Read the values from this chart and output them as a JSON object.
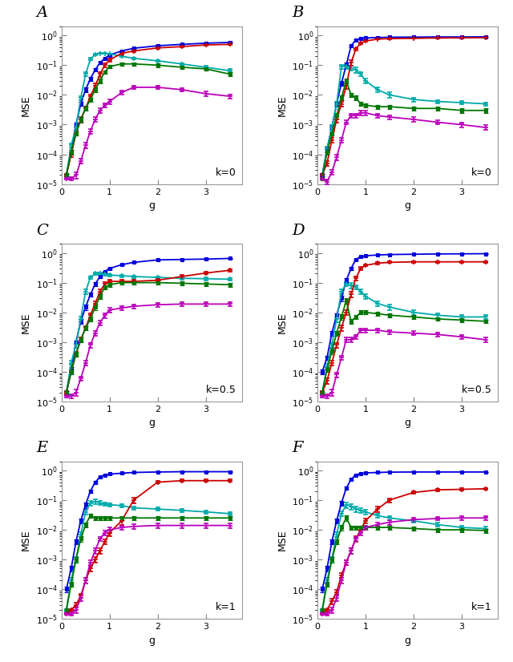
{
  "g_values": [
    0.1,
    0.2,
    0.3,
    0.4,
    0.5,
    0.6,
    0.7,
    0.8,
    0.9,
    1.0,
    1.25,
    1.5,
    2.0,
    2.5,
    3.0,
    3.5
  ],
  "panel_labels": [
    "A",
    "B",
    "C",
    "D",
    "E",
    "F"
  ],
  "k_labels": [
    "k=0",
    "k=0",
    "k=0.5",
    "k=0.5",
    "k=1",
    "k=1"
  ],
  "colors": {
    "blue": "#0000DD",
    "cyan": "#00AAAA",
    "red": "#CC0000",
    "green": "#007700",
    "magenta": "#BB00BB"
  },
  "series_keys": [
    "blue",
    "cyan",
    "red",
    "green",
    "magenta"
  ],
  "ylim": [
    1e-05,
    2.0
  ],
  "xlim": [
    0,
    3.75
  ],
  "panel_data": {
    "A": {
      "blue": [
        2e-05,
        0.00012,
        0.001,
        0.005,
        0.015,
        0.035,
        0.07,
        0.12,
        0.17,
        0.22,
        0.3,
        0.37,
        0.45,
        0.5,
        0.55,
        0.58
      ],
      "cyan": [
        2e-05,
        0.0002,
        0.0008,
        0.008,
        0.05,
        0.16,
        0.23,
        0.25,
        0.25,
        0.24,
        0.2,
        0.17,
        0.14,
        0.11,
        0.085,
        0.065
      ],
      "red": [
        2e-05,
        0.0001,
        0.0005,
        0.0015,
        0.0035,
        0.009,
        0.02,
        0.05,
        0.1,
        0.15,
        0.25,
        0.3,
        0.38,
        0.42,
        0.48,
        0.5
      ],
      "green": [
        2e-05,
        0.00012,
        0.0005,
        0.0015,
        0.0035,
        0.007,
        0.015,
        0.03,
        0.06,
        0.09,
        0.11,
        0.11,
        0.1,
        0.085,
        0.075,
        0.05
      ],
      "magenta": [
        1.5e-05,
        1.5e-05,
        2e-05,
        6e-05,
        0.0002,
        0.0006,
        0.0015,
        0.003,
        0.0045,
        0.006,
        0.012,
        0.018,
        0.018,
        0.015,
        0.011,
        0.009
      ],
      "blue_err": [
        2e-06,
        2e-05,
        0.00015,
        0.0008,
        0.0025,
        0.005,
        0.008,
        0.012,
        0.012,
        0.015,
        0.015,
        0.02,
        0.02,
        0.02,
        0.02,
        0.02
      ],
      "cyan_err": [
        2e-06,
        3e-05,
        0.00015,
        0.0012,
        0.008,
        0.015,
        0.015,
        0.012,
        0.012,
        0.01,
        0.01,
        0.01,
        0.01,
        0.008,
        0.008,
        0.008
      ],
      "red_err": [
        2e-06,
        2e-05,
        8e-05,
        0.0003,
        0.0005,
        0.0015,
        0.004,
        0.01,
        0.015,
        0.02,
        0.02,
        0.02,
        0.02,
        0.02,
        0.02,
        0.02
      ],
      "green_err": [
        2e-06,
        2e-05,
        8e-05,
        0.0003,
        0.0005,
        0.001,
        0.0025,
        0.005,
        0.008,
        0.012,
        0.015,
        0.015,
        0.015,
        0.012,
        0.01,
        0.008
      ],
      "magenta_err": [
        1e-06,
        2e-06,
        5e-06,
        1e-05,
        4e-05,
        0.0001,
        0.00025,
        0.0005,
        0.0008,
        0.0012,
        0.002,
        0.0025,
        0.0025,
        0.002,
        0.002,
        0.0015
      ]
    },
    "B": {
      "blue": [
        2e-05,
        0.00015,
        0.0008,
        0.005,
        0.025,
        0.1,
        0.45,
        0.7,
        0.8,
        0.82,
        0.85,
        0.87,
        0.88,
        0.89,
        0.89,
        0.9
      ],
      "cyan": [
        2e-05,
        0.00015,
        0.0008,
        0.005,
        0.09,
        0.09,
        0.08,
        0.07,
        0.05,
        0.03,
        0.015,
        0.01,
        0.007,
        0.006,
        0.0055,
        0.005
      ],
      "red": [
        2e-05,
        5e-05,
        0.0003,
        0.0015,
        0.005,
        0.02,
        0.12,
        0.35,
        0.55,
        0.65,
        0.75,
        0.78,
        0.8,
        0.82,
        0.83,
        0.84
      ],
      "green": [
        1.5e-05,
        0.00012,
        0.0005,
        0.002,
        0.008,
        0.03,
        0.01,
        0.008,
        0.005,
        0.0045,
        0.004,
        0.004,
        0.0035,
        0.0035,
        0.003,
        0.003
      ],
      "magenta": [
        1.5e-05,
        1.2e-05,
        2.5e-05,
        8e-05,
        0.0003,
        0.0012,
        0.002,
        0.002,
        0.0025,
        0.0025,
        0.002,
        0.0018,
        0.0015,
        0.0012,
        0.001,
        0.0008
      ],
      "blue_err": [
        2e-06,
        3e-05,
        0.00015,
        0.001,
        0.005,
        0.02,
        0.04,
        0.03,
        0.02,
        0.02,
        0.015,
        0.015,
        0.015,
        0.015,
        0.015,
        0.015
      ],
      "cyan_err": [
        2e-06,
        3e-05,
        0.00015,
        0.001,
        0.015,
        0.015,
        0.015,
        0.015,
        0.008,
        0.005,
        0.0025,
        0.002,
        0.001,
        0.0008,
        0.0007,
        0.0006
      ],
      "red_err": [
        2e-06,
        1e-05,
        5e-05,
        0.0003,
        0.001,
        0.004,
        0.025,
        0.03,
        0.03,
        0.03,
        0.03,
        0.03,
        0.03,
        0.03,
        0.02,
        0.02
      ],
      "green_err": [
        1e-06,
        2e-05,
        8e-05,
        0.0004,
        0.0015,
        0.005,
        0.0015,
        0.0015,
        0.0008,
        0.0008,
        0.0007,
        0.0007,
        0.0006,
        0.0006,
        0.0005,
        0.0005
      ],
      "magenta_err": [
        1e-06,
        2e-06,
        5e-06,
        1.5e-05,
        5e-05,
        0.0002,
        0.0003,
        0.0003,
        0.0004,
        0.0004,
        0.0003,
        0.0003,
        0.00025,
        0.0002,
        0.0002,
        0.00015
      ]
    },
    "C": {
      "blue": [
        2e-05,
        0.00012,
        0.001,
        0.005,
        0.015,
        0.04,
        0.09,
        0.16,
        0.24,
        0.3,
        0.4,
        0.48,
        0.58,
        0.6,
        0.62,
        0.65
      ],
      "cyan": [
        2e-05,
        0.0002,
        0.0008,
        0.006,
        0.05,
        0.15,
        0.2,
        0.2,
        0.19,
        0.18,
        0.17,
        0.16,
        0.15,
        0.14,
        0.135,
        0.13
      ],
      "red": [
        2e-05,
        0.0001,
        0.0004,
        0.0012,
        0.003,
        0.008,
        0.02,
        0.05,
        0.09,
        0.11,
        0.11,
        0.11,
        0.12,
        0.16,
        0.21,
        0.26
      ],
      "green": [
        2e-05,
        0.0001,
        0.0004,
        0.0012,
        0.003,
        0.006,
        0.015,
        0.035,
        0.07,
        0.085,
        0.1,
        0.1,
        0.1,
        0.095,
        0.09,
        0.085
      ],
      "magenta": [
        1.5e-05,
        1.5e-05,
        2e-05,
        6e-05,
        0.0002,
        0.0008,
        0.002,
        0.0045,
        0.008,
        0.012,
        0.014,
        0.016,
        0.018,
        0.019,
        0.019,
        0.019
      ],
      "blue_err": [
        2e-06,
        2e-05,
        0.00015,
        0.0008,
        0.003,
        0.007,
        0.012,
        0.015,
        0.015,
        0.015,
        0.015,
        0.02,
        0.02,
        0.02,
        0.02,
        0.02
      ],
      "cyan_err": [
        2e-06,
        3e-05,
        0.00015,
        0.0012,
        0.01,
        0.015,
        0.015,
        0.015,
        0.015,
        0.015,
        0.015,
        0.015,
        0.015,
        0.015,
        0.015,
        0.015
      ],
      "red_err": [
        2e-06,
        2e-05,
        8e-05,
        0.0002,
        0.0005,
        0.0015,
        0.004,
        0.01,
        0.015,
        0.015,
        0.015,
        0.015,
        0.015,
        0.02,
        0.02,
        0.02
      ],
      "green_err": [
        2e-06,
        2e-05,
        8e-05,
        0.0002,
        0.0005,
        0.001,
        0.003,
        0.006,
        0.01,
        0.012,
        0.015,
        0.015,
        0.015,
        0.015,
        0.015,
        0.015
      ],
      "magenta_err": [
        1e-06,
        2e-06,
        5e-06,
        1e-05,
        4e-05,
        0.00015,
        0.0004,
        0.0008,
        0.0015,
        0.002,
        0.0025,
        0.0025,
        0.003,
        0.003,
        0.003,
        0.003
      ]
    },
    "D": {
      "blue": [
        0.0001,
        0.0003,
        0.002,
        0.008,
        0.03,
        0.12,
        0.3,
        0.6,
        0.75,
        0.8,
        0.85,
        0.88,
        0.9,
        0.92,
        0.93,
        0.94
      ],
      "cyan": [
        2e-05,
        0.00015,
        0.0008,
        0.006,
        0.05,
        0.09,
        0.08,
        0.07,
        0.05,
        0.035,
        0.02,
        0.015,
        0.01,
        0.008,
        0.007,
        0.007
      ],
      "red": [
        2e-05,
        5e-05,
        0.0002,
        0.0008,
        0.003,
        0.01,
        0.04,
        0.14,
        0.3,
        0.38,
        0.45,
        0.48,
        0.5,
        0.5,
        0.5,
        0.5
      ],
      "green": [
        2e-05,
        0.00012,
        0.0005,
        0.002,
        0.007,
        0.025,
        0.005,
        0.007,
        0.01,
        0.01,
        0.009,
        0.008,
        0.007,
        0.006,
        0.0055,
        0.005
      ],
      "magenta": [
        1.5e-05,
        1.5e-05,
        2e-05,
        8e-05,
        0.0003,
        0.0012,
        0.0012,
        0.0015,
        0.0025,
        0.0025,
        0.0025,
        0.0022,
        0.002,
        0.0018,
        0.0015,
        0.0012
      ],
      "blue_err": [
        2e-05,
        5e-05,
        0.0004,
        0.0015,
        0.006,
        0.02,
        0.03,
        0.03,
        0.02,
        0.015,
        0.012,
        0.01,
        0.01,
        0.01,
        0.01,
        0.01
      ],
      "cyan_err": [
        2e-06,
        3e-05,
        0.00015,
        0.0012,
        0.01,
        0.015,
        0.015,
        0.012,
        0.008,
        0.006,
        0.004,
        0.003,
        0.002,
        0.0015,
        0.0012,
        0.0012
      ],
      "red_err": [
        2e-06,
        1e-05,
        4e-05,
        0.00015,
        0.0006,
        0.002,
        0.008,
        0.02,
        0.03,
        0.03,
        0.03,
        0.03,
        0.03,
        0.03,
        0.03,
        0.03
      ],
      "green_err": [
        1e-06,
        2e-05,
        0.0001,
        0.0004,
        0.0015,
        0.005,
        0.0008,
        0.0012,
        0.0015,
        0.0015,
        0.0012,
        0.0012,
        0.001,
        0.0008,
        0.0008,
        0.0007
      ],
      "magenta_err": [
        1e-06,
        2e-06,
        5e-06,
        1.5e-05,
        5e-05,
        0.0002,
        0.0002,
        0.00025,
        0.0004,
        0.0004,
        0.0004,
        0.00035,
        0.0003,
        0.0003,
        0.00025,
        0.0002
      ]
    },
    "E": {
      "blue": [
        0.0001,
        0.0005,
        0.004,
        0.02,
        0.07,
        0.2,
        0.4,
        0.6,
        0.7,
        0.75,
        0.8,
        0.85,
        0.88,
        0.9,
        0.9,
        0.9
      ],
      "cyan": [
        2e-05,
        0.0002,
        0.001,
        0.007,
        0.04,
        0.08,
        0.09,
        0.08,
        0.075,
        0.07,
        0.065,
        0.055,
        0.05,
        0.045,
        0.04,
        0.035
      ],
      "red": [
        1.5e-05,
        2e-05,
        3e-05,
        6e-05,
        0.0002,
        0.0005,
        0.001,
        0.002,
        0.004,
        0.008,
        0.02,
        0.1,
        0.4,
        0.45,
        0.45,
        0.45
      ],
      "green": [
        2e-05,
        0.00015,
        0.001,
        0.005,
        0.015,
        0.03,
        0.025,
        0.025,
        0.025,
        0.025,
        0.025,
        0.025,
        0.025,
        0.025,
        0.025,
        0.025
      ],
      "magenta": [
        1.5e-05,
        1.5e-05,
        2e-05,
        5e-05,
        0.0002,
        0.0008,
        0.002,
        0.005,
        0.008,
        0.01,
        0.012,
        0.013,
        0.014,
        0.014,
        0.014,
        0.014
      ],
      "blue_err": [
        2e-05,
        0.0001,
        0.0008,
        0.004,
        0.015,
        0.03,
        0.04,
        0.03,
        0.02,
        0.015,
        0.012,
        0.01,
        0.008,
        0.008,
        0.008,
        0.008
      ],
      "cyan_err": [
        2e-06,
        4e-05,
        0.0002,
        0.0014,
        0.008,
        0.015,
        0.015,
        0.012,
        0.01,
        0.01,
        0.008,
        0.007,
        0.006,
        0.006,
        0.005,
        0.005
      ],
      "red_err": [
        1e-06,
        2e-06,
        5e-06,
        1e-05,
        4e-05,
        0.0001,
        0.0002,
        0.0004,
        0.0008,
        0.002,
        0.005,
        0.02,
        0.04,
        0.04,
        0.04,
        0.04
      ],
      "green_err": [
        2e-06,
        3e-05,
        0.0002,
        0.001,
        0.003,
        0.005,
        0.004,
        0.004,
        0.004,
        0.004,
        0.004,
        0.004,
        0.004,
        0.004,
        0.004,
        0.004
      ],
      "magenta_err": [
        1e-06,
        2e-06,
        4e-06,
        1e-05,
        4e-05,
        0.00015,
        0.0004,
        0.0008,
        0.0015,
        0.002,
        0.002,
        0.0025,
        0.0025,
        0.0025,
        0.0025,
        0.0025
      ]
    },
    "F": {
      "blue": [
        0.0001,
        0.0005,
        0.004,
        0.02,
        0.08,
        0.25,
        0.5,
        0.7,
        0.78,
        0.82,
        0.85,
        0.87,
        0.88,
        0.88,
        0.88,
        0.88
      ],
      "cyan": [
        2e-05,
        0.0002,
        0.001,
        0.007,
        0.035,
        0.07,
        0.06,
        0.05,
        0.045,
        0.04,
        0.03,
        0.025,
        0.02,
        0.015,
        0.012,
        0.011
      ],
      "red": [
        1.5e-05,
        2e-05,
        4e-05,
        8e-05,
        0.0003,
        0.0008,
        0.002,
        0.005,
        0.01,
        0.02,
        0.05,
        0.1,
        0.18,
        0.22,
        0.23,
        0.24
      ],
      "green": [
        2e-05,
        0.00015,
        0.001,
        0.004,
        0.012,
        0.025,
        0.012,
        0.012,
        0.012,
        0.012,
        0.012,
        0.012,
        0.011,
        0.01,
        0.01,
        0.0095
      ],
      "magenta": [
        1.5e-05,
        1.5e-05,
        2e-05,
        5e-05,
        0.0002,
        0.0008,
        0.002,
        0.005,
        0.008,
        0.012,
        0.015,
        0.018,
        0.022,
        0.024,
        0.025,
        0.025
      ],
      "blue_err": [
        2e-05,
        0.0001,
        0.0008,
        0.004,
        0.015,
        0.03,
        0.04,
        0.025,
        0.02,
        0.015,
        0.012,
        0.01,
        0.008,
        0.008,
        0.008,
        0.008
      ],
      "cyan_err": [
        2e-06,
        4e-05,
        0.0002,
        0.0014,
        0.007,
        0.015,
        0.012,
        0.01,
        0.008,
        0.007,
        0.005,
        0.004,
        0.003,
        0.002,
        0.002,
        0.0015
      ],
      "red_err": [
        1e-06,
        2e-06,
        8e-06,
        1.5e-05,
        6e-05,
        0.00015,
        0.0004,
        0.001,
        0.002,
        0.004,
        0.01,
        0.015,
        0.02,
        0.02,
        0.02,
        0.02
      ],
      "green_err": [
        2e-06,
        3e-05,
        0.0002,
        0.0008,
        0.0025,
        0.005,
        0.002,
        0.002,
        0.002,
        0.002,
        0.002,
        0.002,
        0.0018,
        0.0015,
        0.0015,
        0.0015
      ],
      "magenta_err": [
        1e-06,
        2e-06,
        4e-06,
        1e-05,
        4e-05,
        0.00015,
        0.0004,
        0.0008,
        0.0015,
        0.002,
        0.0025,
        0.003,
        0.0035,
        0.0035,
        0.0035,
        0.0035
      ]
    }
  }
}
